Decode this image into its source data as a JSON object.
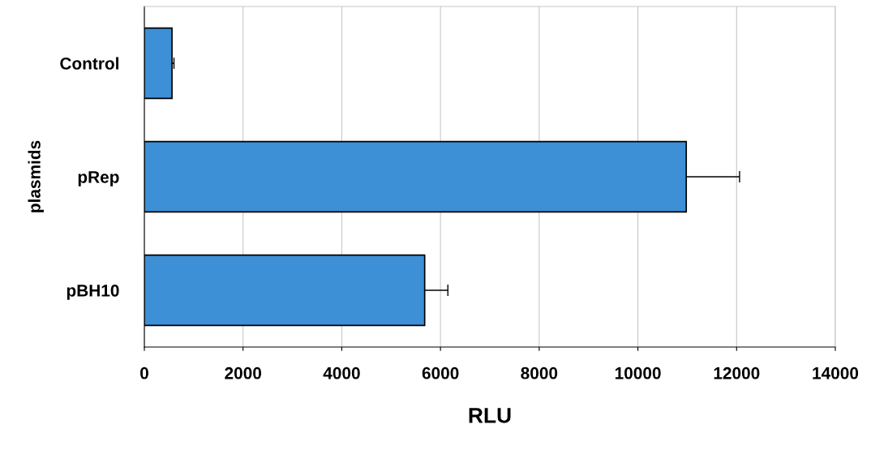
{
  "chart_data": {
    "type": "bar",
    "orientation": "horizontal",
    "categories": [
      "Control",
      "pRep",
      "pBH10"
    ],
    "values": [
      560,
      10980,
      5680
    ],
    "errors": [
      40,
      1080,
      470
    ],
    "color": "#3d8fd6",
    "xlabel": "RLU",
    "ylabel": "plasmids",
    "xlim": [
      0,
      14000
    ],
    "xticks": [
      0,
      2000,
      4000,
      6000,
      8000,
      10000,
      12000,
      14000
    ],
    "grid": "x"
  }
}
